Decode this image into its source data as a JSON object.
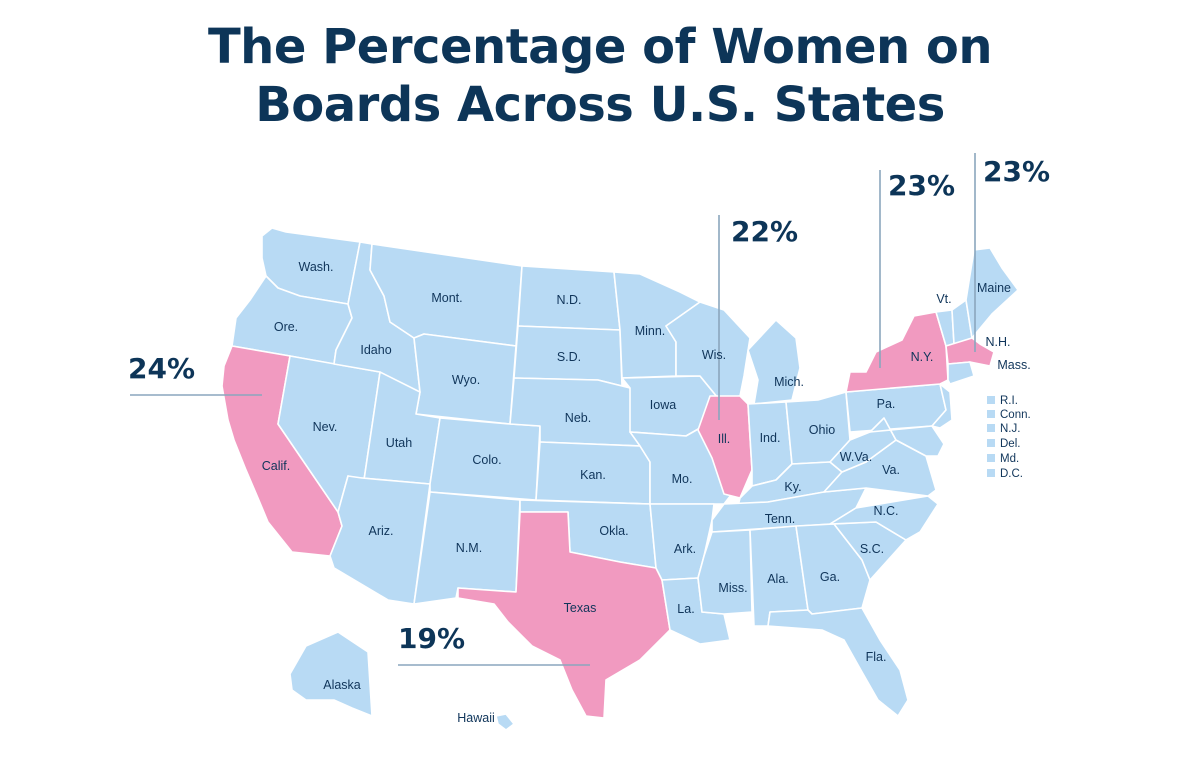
{
  "title": {
    "line1": "The Percentage of Women on",
    "line2": "Boards Across U.S. States"
  },
  "colors": {
    "base": "#b8daf4",
    "highlight": "#f19ac0",
    "text": "#0d3558",
    "leader": "#8aa6bd"
  },
  "highlighted_states": [
    {
      "state": "Calif.",
      "percent": "24%"
    },
    {
      "state": "Texas",
      "percent": "19%"
    },
    {
      "state": "Ill.",
      "percent": "22%"
    },
    {
      "state": "N.Y.",
      "percent": "23%"
    },
    {
      "state": "Mass.",
      "percent": "23%"
    }
  ],
  "state_labels": {
    "wash": "Wash.",
    "ore": "Ore.",
    "calif": "Calif.",
    "nev": "Nev.",
    "idaho": "Idaho",
    "mont": "Mont.",
    "wyo": "Wyo.",
    "utah": "Utah",
    "ariz": "Ariz.",
    "colo": "Colo.",
    "nm": "N.M.",
    "nd": "N.D.",
    "sd": "S.D.",
    "neb": "Neb.",
    "kan": "Kan.",
    "okla": "Okla.",
    "texas": "Texas",
    "minn": "Minn.",
    "iowa": "Iowa",
    "mo": "Mo.",
    "ark": "Ark.",
    "la": "La.",
    "wis": "Wis.",
    "ill": "Ill.",
    "mich": "Mich.",
    "ind": "Ind.",
    "ohio": "Ohio",
    "ky": "Ky.",
    "tenn": "Tenn.",
    "miss": "Miss.",
    "ala": "Ala.",
    "ga": "Ga.",
    "fla": "Fla.",
    "sc": "S.C.",
    "nc": "N.C.",
    "va": "Va.",
    "wva": "W.Va.",
    "pa": "Pa.",
    "ny": "N.Y.",
    "vt": "Vt.",
    "nh": "N.H.",
    "maine": "Maine",
    "mass": "Mass.",
    "alaska": "Alaska",
    "hawaii": "Hawaii"
  },
  "legend_small_states": [
    "R.I.",
    "Conn.",
    "N.J.",
    "Del.",
    "Md.",
    "D.C."
  ]
}
